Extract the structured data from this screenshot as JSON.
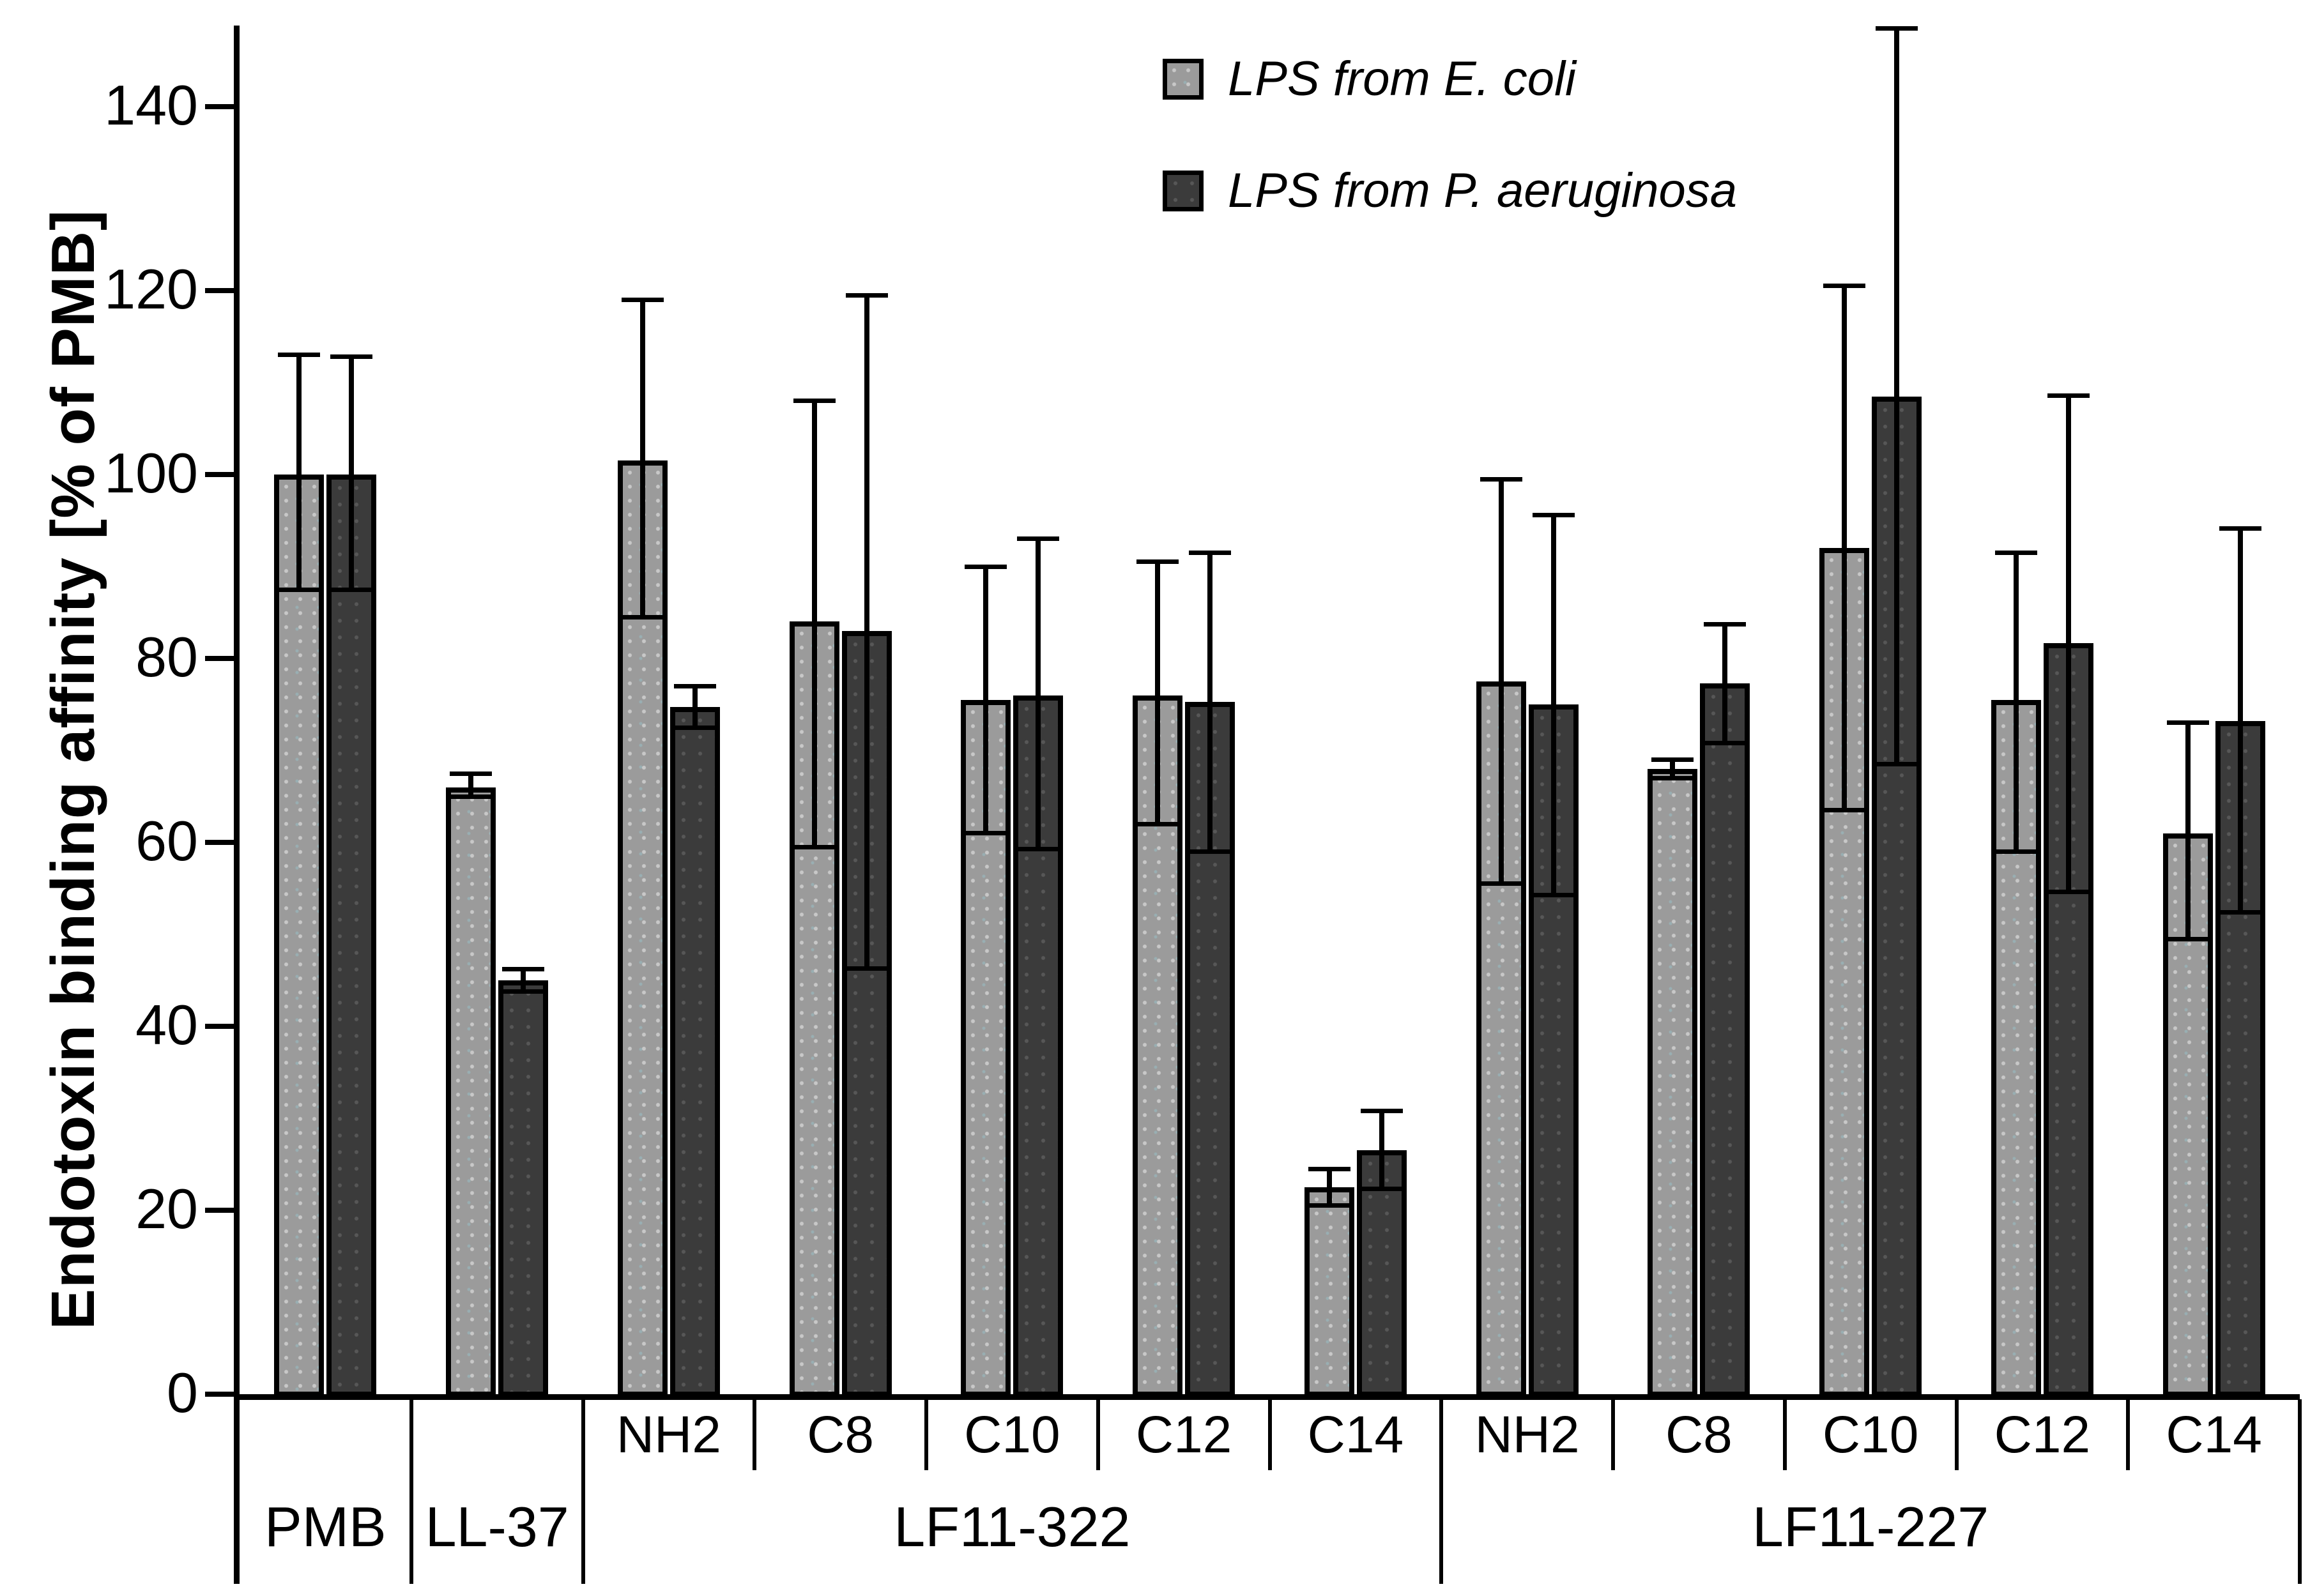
{
  "figure": {
    "background": "#ffffff",
    "axis_color": "#000000"
  },
  "chart_data": {
    "type": "bar",
    "title": "",
    "xlabel": "",
    "ylabel": "Endotoxin binding affinity [% of PMB]",
    "ylim": [
      0,
      150
    ],
    "yticks": [
      0,
      20,
      40,
      60,
      80,
      100,
      120,
      140
    ],
    "grid": false,
    "legend_position": "top-center",
    "error_bars": true,
    "groups": [
      {
        "label": "PMB",
        "subs": [
          ""
        ]
      },
      {
        "label": "LL-37",
        "subs": [
          ""
        ]
      },
      {
        "label": "LF11-322",
        "subs": [
          "NH2",
          "C8",
          "C10",
          "C12",
          "C14"
        ]
      },
      {
        "label": "LF11-227",
        "subs": [
          "NH2",
          "C8",
          "C10",
          "C12",
          "C14"
        ]
      }
    ],
    "categories_flat": [
      "PMB",
      "LL-37",
      "LF11-322 NH2",
      "LF11-322 C8",
      "LF11-322 C10",
      "LF11-322 C12",
      "LF11-322 C14",
      "LF11-227 NH2",
      "LF11-227 C8",
      "LF11-227 C10",
      "LF11-227 C12",
      "LF11-227 C14"
    ],
    "series": [
      {
        "name": "LPS from E. coli",
        "color": "#9b9b9b",
        "values": [
          100,
          66,
          101.5,
          84,
          75.5,
          76,
          22.5,
          77.5,
          68,
          92,
          75.5,
          61
        ],
        "err_low": [
          87.5,
          65,
          84.5,
          59.5,
          61,
          62,
          20.5,
          55.5,
          67,
          63.5,
          59,
          49.5
        ],
        "err_high": [
          113,
          67.5,
          119,
          108,
          90,
          90.5,
          24.5,
          99.5,
          69,
          120.5,
          91.5,
          73
        ]
      },
      {
        "name": "LPS from P. aeruginosa",
        "color": "#3b3b3b",
        "values": [
          100,
          45,
          74.7,
          83,
          76,
          75.3,
          26.5,
          75,
          77.3,
          108.5,
          81.7,
          73.2
        ],
        "err_low": [
          87.5,
          43.8,
          72.5,
          46.3,
          59.3,
          59,
          22.3,
          54.3,
          70.8,
          68.5,
          54.6,
          52.4
        ],
        "err_high": [
          112.8,
          46.2,
          77,
          119.5,
          93,
          91.5,
          30.8,
          95.6,
          83.7,
          148.5,
          108.6,
          94.1
        ]
      }
    ]
  }
}
